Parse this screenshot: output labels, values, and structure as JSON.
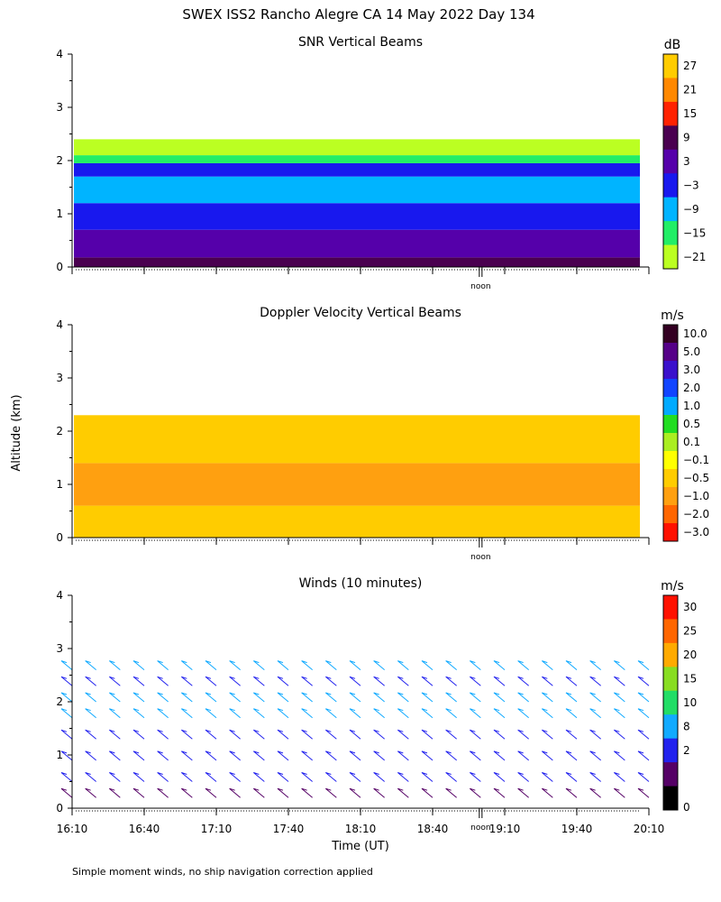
{
  "page_title": "SWEX ISS2 Rancho Alegre CA  14 May 2022 Day 134",
  "footnote": "Simple moment winds, no ship navigation correction applied",
  "ylabel": "Altitude (km)",
  "xlabel": "Time (UT)",
  "noon_label": "noon",
  "chart_data": [
    {
      "type": "heatmap",
      "title": "SNR Vertical Beams",
      "units": "dB",
      "ylim": [
        0,
        4
      ],
      "yticks": [
        "0",
        "1",
        "2",
        "3",
        "4"
      ],
      "colorbar": {
        "labels": [
          "27",
          "21",
          "15",
          "9",
          "3",
          "−3",
          "−9",
          "−15",
          "−21"
        ],
        "colors": [
          "#ffcc00",
          "#ff8800",
          "#ff2200",
          "#4a0050",
          "#5500aa",
          "#1818ee",
          "#00b4ff",
          "#22ee66",
          "#bbff22"
        ]
      },
      "bands": [
        {
          "ybot": 0.0,
          "ytop": 0.18,
          "color": "#4a0050"
        },
        {
          "ybot": 0.18,
          "ytop": 0.7,
          "color": "#5500aa"
        },
        {
          "ybot": 0.7,
          "ytop": 1.2,
          "color": "#1818ee"
        },
        {
          "ybot": 1.2,
          "ytop": 1.7,
          "color": "#00b4ff"
        },
        {
          "ybot": 1.7,
          "ytop": 1.95,
          "color": "#1818ee"
        },
        {
          "ybot": 1.95,
          "ytop": 2.1,
          "color": "#22ee66"
        },
        {
          "ybot": 2.1,
          "ytop": 2.4,
          "color": "#bbff22"
        }
      ]
    },
    {
      "type": "heatmap",
      "title": "Doppler Velocity Vertical Beams",
      "units": "m/s",
      "ylim": [
        0,
        4
      ],
      "yticks": [
        "0",
        "1",
        "2",
        "3",
        "4"
      ],
      "colorbar": {
        "labels": [
          "10.0",
          "5.0",
          "3.0",
          "2.0",
          "1.0",
          "0.5",
          "0.1",
          "−0.1",
          "−0.5",
          "−1.0",
          "−2.0",
          "−3.0"
        ],
        "colors": [
          "#330022",
          "#550088",
          "#3a10cc",
          "#1144ff",
          "#00aaff",
          "#22dd22",
          "#aaee22",
          "#ffff00",
          "#ffcc00",
          "#ffa010",
          "#ff6600",
          "#ff1100"
        ]
      },
      "bands": [
        {
          "ybot": 0.0,
          "ytop": 0.6,
          "color": "#ffcc00"
        },
        {
          "ybot": 0.6,
          "ytop": 1.4,
          "color": "#ffa010"
        },
        {
          "ybot": 1.4,
          "ytop": 2.3,
          "color": "#ffcc00"
        }
      ]
    },
    {
      "type": "wind-barbs",
      "title": "Winds (10 minutes)",
      "units": "m/s",
      "ylim": [
        0,
        4
      ],
      "yticks": [
        "0",
        "1",
        "2",
        "3",
        "4"
      ],
      "colorbar": {
        "labels": [
          "30",
          "25",
          "20",
          "15",
          "10",
          "8",
          "2",
          "0"
        ],
        "colors": [
          "#ff1100",
          "#ff6600",
          "#ffaa00",
          "#88dd22",
          "#22dd66",
          "#11aaff",
          "#2222ee",
          "#550066",
          "#000000"
        ]
      },
      "time_points": [
        "16:10",
        "16:20",
        "16:30",
        "16:40",
        "16:50",
        "17:00",
        "17:10",
        "17:20",
        "17:30",
        "17:40",
        "17:50",
        "18:00",
        "18:10",
        "18:20",
        "18:30",
        "18:40",
        "18:50",
        "19:00",
        "19:10",
        "19:20",
        "19:30",
        "19:40",
        "19:50",
        "20:00",
        "20:10"
      ],
      "profile": [
        {
          "alt": 0.2,
          "speed": 3
        },
        {
          "alt": 0.5,
          "speed": 4
        },
        {
          "alt": 0.9,
          "speed": 5
        },
        {
          "alt": 1.3,
          "speed": 6
        },
        {
          "alt": 1.7,
          "speed": 8
        },
        {
          "alt": 2.0,
          "speed": 8
        },
        {
          "alt": 2.3,
          "speed": 6
        },
        {
          "alt": 2.6,
          "speed": 7
        }
      ]
    }
  ],
  "x_axis": {
    "range_hours": [
      16.1667,
      20.1667
    ],
    "tick_labels": [
      "16:10",
      "16:40",
      "17:10",
      "17:40",
      "18:10",
      "18:40",
      "19:10",
      "19:40",
      "20:10"
    ],
    "noon_time": "19:00"
  }
}
